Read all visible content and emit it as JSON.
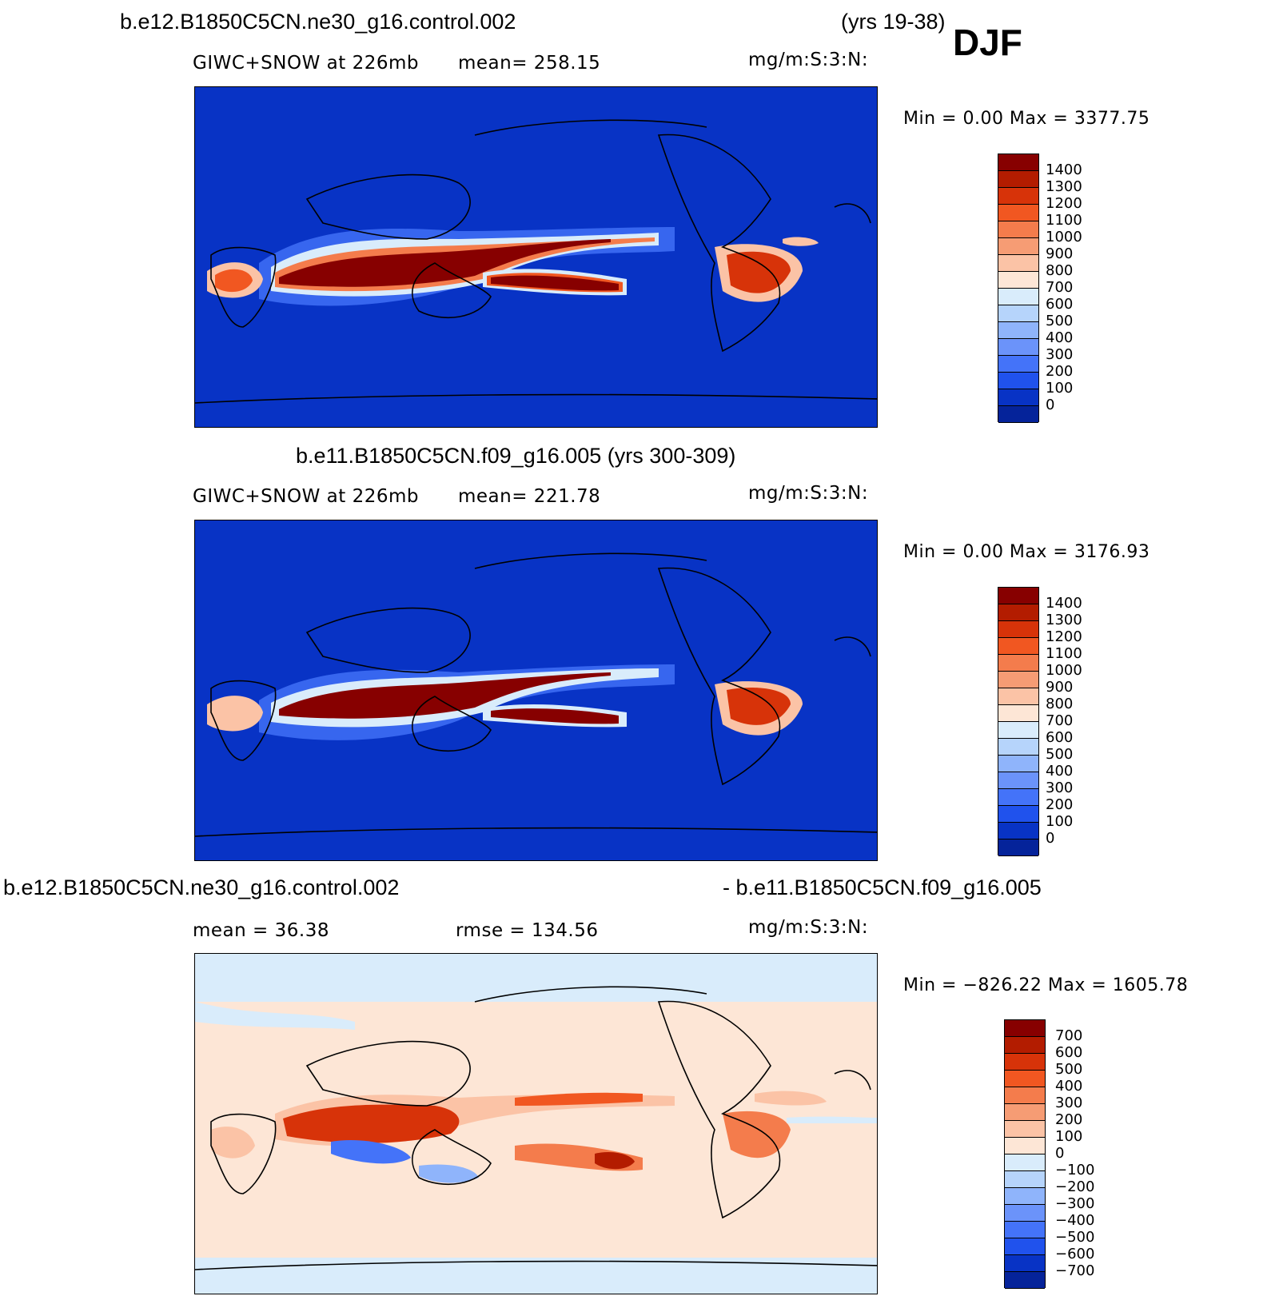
{
  "header": {
    "case1_title": "b.e12.B1850C5CN.ne30_g16.control.002",
    "case1_years": "(yrs 19-38)",
    "season": "DJF"
  },
  "panels": [
    {
      "title": "",
      "variable": "GIWC+SNOW at 226mb",
      "stat": "mean= 258.15",
      "units": "mg/m:S:3:N:",
      "minmax": "Min =    0.00 Max = 3377.75",
      "palette": "absolute"
    },
    {
      "title": "b.e11.B1850C5CN.f09_g16.005 (yrs 300-309)",
      "variable": "GIWC+SNOW at 226mb",
      "stat": "mean= 221.78",
      "units": "mg/m:S:3:N:",
      "minmax": "Min =    0.00 Max = 3176.93",
      "palette": "absolute"
    },
    {
      "title_left": "b.e12.B1850C5CN.ne30_g16.control.002",
      "title_right": "- b.e11.B1850C5CN.f09_g16.005",
      "variable": "mean =   36.38",
      "stat": "rmse =  134.56",
      "units": "mg/m:S:3:N:",
      "minmax": "Min = −826.22 Max = 1605.78",
      "palette": "difference"
    }
  ],
  "colorbars": {
    "absolute": {
      "labels": [
        "1400",
        "1300",
        "1200",
        "1100",
        "1000",
        "900",
        "800",
        "700",
        "600",
        "500",
        "400",
        "300",
        "200",
        "100",
        "0"
      ],
      "colors": [
        "#870000",
        "#b31c00",
        "#d73309",
        "#f15721",
        "#f47c4c",
        "#f69c74",
        "#fbc3a6",
        "#fde6d6",
        "#d9ecfb",
        "#b6d4fb",
        "#8fb4fb",
        "#6b93fa",
        "#4473f9",
        "#2052ed",
        "#0833c5",
        "#05239a"
      ]
    },
    "difference": {
      "labels": [
        "700",
        "600",
        "500",
        "400",
        "300",
        "200",
        "100",
        "0",
        "−100",
        "−200",
        "−300",
        "−400",
        "−500",
        "−600",
        "−700"
      ],
      "colors": [
        "#870000",
        "#b31c00",
        "#d73309",
        "#f15721",
        "#f47c4c",
        "#f69c74",
        "#fbc3a6",
        "#fde6d6",
        "#d9ecfb",
        "#b6d4fb",
        "#8fb4fb",
        "#6b93fa",
        "#4473f9",
        "#2052ed",
        "#0833c5",
        "#05239a"
      ]
    }
  }
}
